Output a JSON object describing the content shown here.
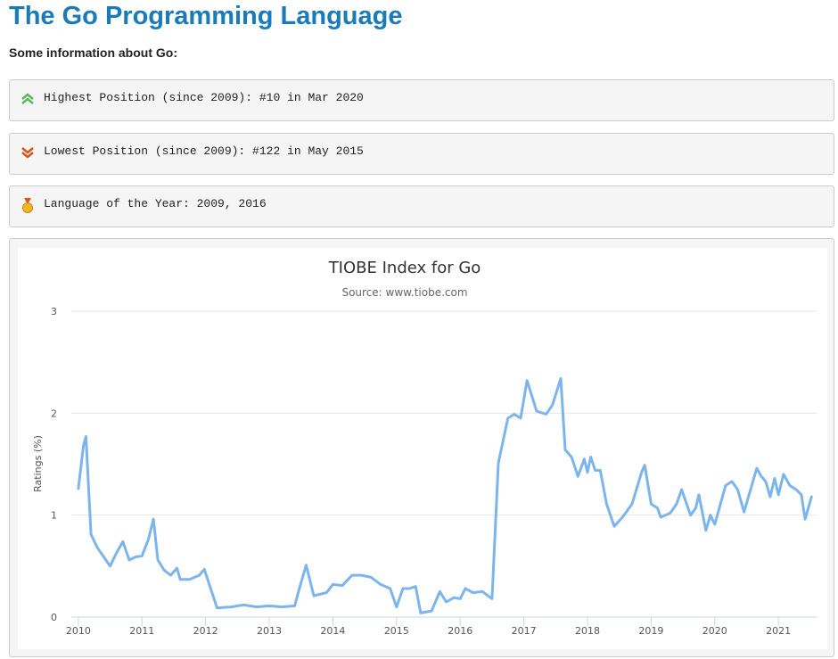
{
  "header": {
    "title": "The Go Programming Language",
    "subtitle": "Some information about Go:"
  },
  "info": [
    "Highest Position (since 2009): #10 in Mar 2020",
    "Lowest Position (since 2009): #122 in May 2015",
    "Language of the Year: 2009, 2016"
  ],
  "chart_data": {
    "type": "line",
    "title": "TIOBE Index for Go",
    "subtitle": "Source: www.tiobe.com",
    "y_label": "Ratings (%)",
    "color": "#7cb5ec",
    "grid": true,
    "x": [
      2010.0,
      2010.08,
      2010.12,
      2010.2,
      2010.3,
      2010.4,
      2010.5,
      2010.6,
      2010.7,
      2010.8,
      2010.9,
      2011.0,
      2011.1,
      2011.18,
      2011.25,
      2011.35,
      2011.45,
      2011.55,
      2011.6,
      2011.75,
      2011.9,
      2011.98,
      2012.1,
      2012.18,
      2012.4,
      2012.6,
      2012.8,
      2013.0,
      2013.2,
      2013.4,
      2013.45,
      2013.58,
      2013.7,
      2013.9,
      2014.0,
      2014.15,
      2014.3,
      2014.45,
      2014.6,
      2014.75,
      2014.9,
      2015.0,
      2015.1,
      2015.2,
      2015.3,
      2015.38,
      2015.55,
      2015.68,
      2015.78,
      2015.9,
      2016.0,
      2016.08,
      2016.2,
      2016.35,
      2016.5,
      2016.6,
      2016.75,
      2016.85,
      2016.95,
      2017.05,
      2017.2,
      2017.35,
      2017.45,
      2017.58,
      2017.65,
      2017.75,
      2017.85,
      2017.95,
      2018.0,
      2018.05,
      2018.12,
      2018.2,
      2018.3,
      2018.42,
      2018.55,
      2018.7,
      2018.85,
      2018.9,
      2019.0,
      2019.1,
      2019.15,
      2019.3,
      2019.4,
      2019.48,
      2019.62,
      2019.7,
      2019.75,
      2019.86,
      2019.93,
      2020.0,
      2020.17,
      2020.27,
      2020.36,
      2020.46,
      2020.66,
      2020.73,
      2020.8,
      2020.87,
      2020.94,
      2021.0,
      2021.08,
      2021.18,
      2021.28,
      2021.36,
      2021.42,
      2021.52
    ],
    "values": [
      1.26,
      1.68,
      1.77,
      0.81,
      0.68,
      0.59,
      0.5,
      0.63,
      0.74,
      0.56,
      0.59,
      0.6,
      0.76,
      0.96,
      0.56,
      0.46,
      0.41,
      0.48,
      0.37,
      0.37,
      0.41,
      0.47,
      0.24,
      0.09,
      0.1,
      0.12,
      0.1,
      0.11,
      0.1,
      0.11,
      0.23,
      0.51,
      0.21,
      0.24,
      0.32,
      0.31,
      0.41,
      0.41,
      0.39,
      0.32,
      0.28,
      0.1,
      0.28,
      0.28,
      0.3,
      0.04,
      0.06,
      0.25,
      0.15,
      0.19,
      0.18,
      0.28,
      0.24,
      0.25,
      0.18,
      1.51,
      1.95,
      1.99,
      1.95,
      2.32,
      2.02,
      1.99,
      2.08,
      2.34,
      1.64,
      1.57,
      1.38,
      1.55,
      1.42,
      1.57,
      1.44,
      1.44,
      1.11,
      0.89,
      0.98,
      1.11,
      1.42,
      1.49,
      1.11,
      1.07,
      0.98,
      1.02,
      1.11,
      1.25,
      1.0,
      1.07,
      1.2,
      0.85,
      1.0,
      0.91,
      1.29,
      1.33,
      1.25,
      1.03,
      1.46,
      1.38,
      1.33,
      1.18,
      1.36,
      1.2,
      1.4,
      1.29,
      1.25,
      1.2,
      0.96,
      1.18
    ],
    "xlim": [
      2009.89,
      2021.6
    ],
    "xticks": [
      2010,
      2011,
      2012,
      2013,
      2014,
      2015,
      2016,
      2017,
      2018,
      2019,
      2020,
      2021
    ],
    "ylim": [
      0,
      3
    ],
    "yticks": [
      0,
      1,
      2,
      3
    ]
  }
}
